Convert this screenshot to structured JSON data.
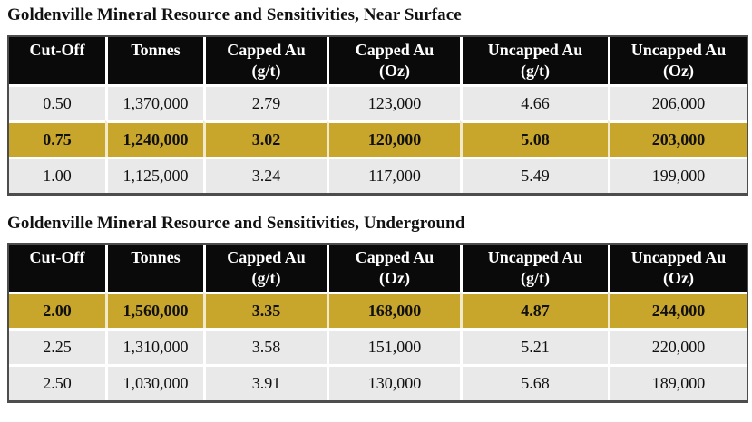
{
  "colors": {
    "highlight_gold": "#c8a52b",
    "row_gray": "#e9e9e9",
    "header_bg": "#0a0a0a",
    "header_text": "#ffffff",
    "table_border": "#4d4d4d"
  },
  "tables": [
    {
      "title": "Goldenville Mineral Resource and Sensitivities, Near Surface",
      "columns": [
        {
          "id": "cut-off",
          "lines": [
            "Cut-Off"
          ]
        },
        {
          "id": "tonnes",
          "lines": [
            "Tonnes"
          ]
        },
        {
          "id": "capped-au-gt",
          "lines": [
            "Capped Au",
            "(g/t)"
          ]
        },
        {
          "id": "capped-au-oz",
          "lines": [
            "Capped Au",
            "(Oz)"
          ]
        },
        {
          "id": "uncapped-au-gt",
          "lines": [
            "Uncapped Au",
            "(g/t)"
          ]
        },
        {
          "id": "uncapped-au-oz",
          "lines": [
            "Uncapped Au",
            "(Oz)"
          ]
        }
      ],
      "rows": [
        {
          "highlighted": false,
          "cells": [
            "0.50",
            "1,370,000",
            "2.79",
            "123,000",
            "4.66",
            "206,000"
          ]
        },
        {
          "highlighted": true,
          "cells": [
            "0.75",
            "1,240,000",
            "3.02",
            "120,000",
            "5.08",
            "203,000"
          ]
        },
        {
          "highlighted": false,
          "cells": [
            "1.00",
            "1,125,000",
            "3.24",
            "117,000",
            "5.49",
            "199,000"
          ]
        }
      ]
    },
    {
      "title": "Goldenville Mineral Resource and Sensitivities, Underground",
      "columns": [
        {
          "id": "cut-off",
          "lines": [
            "Cut-Off"
          ]
        },
        {
          "id": "tonnes",
          "lines": [
            "Tonnes"
          ]
        },
        {
          "id": "capped-au-gt",
          "lines": [
            "Capped Au",
            "(g/t)"
          ]
        },
        {
          "id": "capped-au-oz",
          "lines": [
            "Capped Au",
            "(Oz)"
          ]
        },
        {
          "id": "uncapped-au-gt",
          "lines": [
            "Uncapped Au",
            "(g/t)"
          ]
        },
        {
          "id": "uncapped-au-oz",
          "lines": [
            "Uncapped Au",
            "(Oz)"
          ]
        }
      ],
      "rows": [
        {
          "highlighted": true,
          "cells": [
            "2.00",
            "1,560,000",
            "3.35",
            "168,000",
            "4.87",
            "244,000"
          ]
        },
        {
          "highlighted": false,
          "cells": [
            "2.25",
            "1,310,000",
            "3.58",
            "151,000",
            "5.21",
            "220,000"
          ]
        },
        {
          "highlighted": false,
          "cells": [
            "2.50",
            "1,030,000",
            "3.91",
            "130,000",
            "5.68",
            "189,000"
          ]
        }
      ]
    }
  ]
}
